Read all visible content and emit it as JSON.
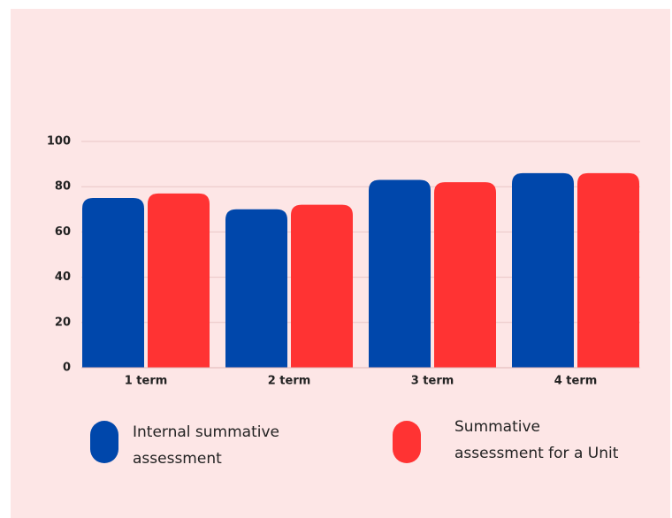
{
  "chart_data": {
    "type": "bar",
    "categories": [
      "1 term",
      "2 term",
      "3 term",
      "4 term"
    ],
    "series": [
      {
        "name": "Internal summative assessment",
        "color": "#0047ab",
        "values": [
          75,
          70,
          83,
          86
        ]
      },
      {
        "name": "Summative assessment for a Unit",
        "color": "#ff3333",
        "values": [
          77,
          72,
          82,
          86
        ]
      }
    ],
    "ylim": [
      0,
      100
    ],
    "yticks": [
      0,
      20,
      40,
      60,
      80,
      100
    ],
    "grid": true,
    "legend": "bottom"
  }
}
